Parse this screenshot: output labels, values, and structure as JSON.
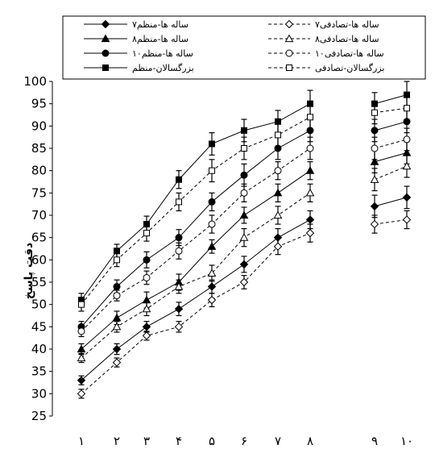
{
  "chart_data": {
    "type": "line",
    "title": "",
    "xlabel": "",
    "ylabel": "دقت پاسخ",
    "ylim": [
      25,
      100
    ],
    "yticks": [
      25,
      30,
      35,
      40,
      45,
      50,
      55,
      60,
      65,
      70,
      75,
      80,
      85,
      90,
      95,
      100
    ],
    "x": [
      "۱",
      "۲",
      "۳",
      "۴",
      "۵",
      "۶",
      "۷",
      "۸",
      "۹",
      "۱۰"
    ],
    "grid": false,
    "legend_position": "top",
    "series": [
      {
        "name": "۷ساله ها-منظم",
        "marker": "diamond",
        "filled": true,
        "dash": "solid",
        "values": [
          33,
          40,
          45,
          49,
          54,
          59,
          65,
          69,
          72,
          74
        ],
        "errors": [
          1,
          1.2,
          1.2,
          1.5,
          1.5,
          1.8,
          2,
          2,
          2.5,
          2.5
        ]
      },
      {
        "name": "۸ساله ها-منظم",
        "marker": "triangle",
        "filled": true,
        "dash": "solid",
        "values": [
          40,
          47,
          51,
          55,
          63,
          70,
          75,
          80,
          82,
          84
        ],
        "errors": [
          1.2,
          1.5,
          1.8,
          1.8,
          1.5,
          1.8,
          2,
          2,
          2.5,
          2.5
        ]
      },
      {
        "name": "۱۰ساله ها-منظم",
        "marker": "circle",
        "filled": true,
        "dash": "solid",
        "values": [
          45,
          54,
          60,
          65,
          73,
          79,
          85,
          89,
          89,
          91
        ],
        "errors": [
          1.2,
          1.5,
          1.8,
          1.8,
          2,
          2.5,
          2.5,
          2.5,
          2.5,
          2.5
        ]
      },
      {
        "name": "بزرگسالان-منظم",
        "marker": "square",
        "filled": true,
        "dash": "solid",
        "values": [
          51,
          62,
          68,
          78,
          86,
          89,
          91,
          95,
          95,
          97
        ],
        "errors": [
          1.5,
          1.5,
          1.8,
          2,
          2.5,
          2.5,
          2.5,
          3,
          2.5,
          3
        ]
      },
      {
        "name": "۷ساله ها-تصادفی",
        "marker": "diamond",
        "filled": false,
        "dash": "dashed",
        "values": [
          30,
          37,
          43,
          45,
          51,
          55,
          63,
          66,
          68,
          69
        ],
        "errors": [
          1,
          1,
          1,
          1.2,
          1.5,
          1.5,
          1.8,
          2,
          2,
          2
        ]
      },
      {
        "name": "۸ساله ها-تصادفی",
        "marker": "triangle",
        "filled": false,
        "dash": "dashed",
        "values": [
          38,
          45,
          49,
          54,
          57,
          65,
          70,
          75,
          78,
          81
        ],
        "errors": [
          1,
          1.2,
          1.5,
          1.5,
          1.8,
          2,
          2,
          2,
          2.5,
          2.5
        ]
      },
      {
        "name": "۱۰ساله ها-تصادفی",
        "marker": "circle",
        "filled": false,
        "dash": "dashed",
        "values": [
          44,
          52,
          56,
          62,
          68,
          75,
          80,
          85,
          85,
          87
        ],
        "errors": [
          1.2,
          1.2,
          1.5,
          1.8,
          2,
          2,
          2,
          2.5,
          2.5,
          2.5
        ]
      },
      {
        "name": "بزرگسالان-تصادفی",
        "marker": "square",
        "filled": false,
        "dash": "dashed",
        "values": [
          50,
          60,
          66,
          73,
          80,
          85,
          88,
          92,
          93,
          94
        ],
        "errors": [
          1.5,
          1.5,
          1.8,
          2,
          2.5,
          2.5,
          2.5,
          3,
          2.5,
          3
        ]
      }
    ]
  }
}
